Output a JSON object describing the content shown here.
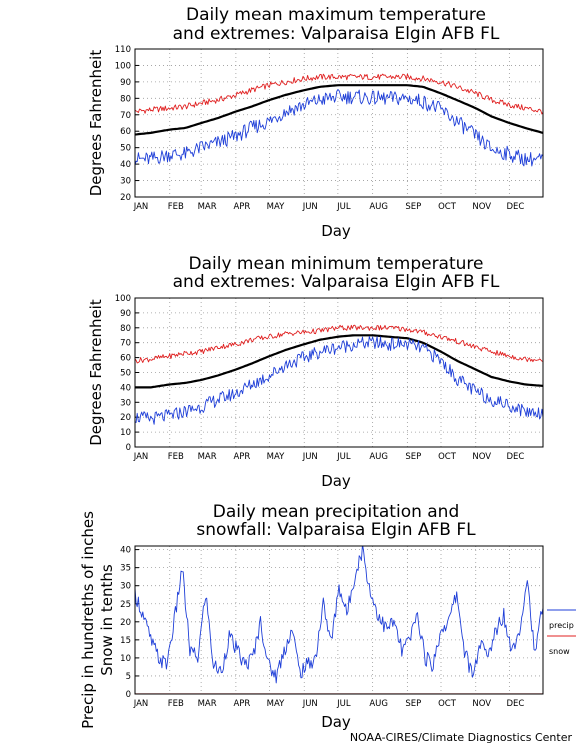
{
  "credit": "NOAA-CIRES/Climate Diagnostics Center",
  "colors": {
    "mean": "#000000",
    "upper": "#e02020",
    "lower": "#1f3fd8",
    "snow": "#e02020",
    "grid": "#9a9a9a"
  },
  "chart_data": [
    {
      "type": "line",
      "title": "Daily mean maximum temperature",
      "subtitle": "and extremes: Valparaisa Elgin AFB FL",
      "xlabel": "Day",
      "ylabel": "Degrees Fahrenheit",
      "x_ticks": [
        "JAN",
        "FEB",
        "MAR",
        "APR",
        "MAY",
        "JUN",
        "JUL",
        "AUG",
        "SEP",
        "OCT",
        "NOV",
        "DEC"
      ],
      "xlim": [
        1,
        365
      ],
      "ylim": [
        20,
        110
      ],
      "y_ticks": [
        20,
        30,
        40,
        50,
        60,
        70,
        80,
        90,
        100,
        110
      ],
      "grid": true,
      "series": [
        {
          "role": "mean",
          "x": [
            1,
            15,
            32,
            46,
            60,
            75,
            91,
            105,
            121,
            135,
            152,
            166,
            182,
            196,
            213,
            227,
            244,
            258,
            274,
            288,
            305,
            319,
            335,
            349,
            365
          ],
          "values": [
            58,
            59,
            61,
            62,
            65,
            68,
            72,
            75,
            79,
            82,
            85,
            87,
            88,
            88,
            88,
            88,
            88,
            87,
            83,
            79,
            74,
            69,
            65,
            62,
            59
          ]
        },
        {
          "role": "upper",
          "x": [
            1,
            15,
            32,
            46,
            60,
            75,
            91,
            105,
            121,
            135,
            152,
            166,
            182,
            196,
            213,
            227,
            244,
            258,
            274,
            288,
            305,
            319,
            335,
            349,
            365
          ],
          "values": [
            72,
            73,
            74,
            75,
            77,
            79,
            82,
            85,
            88,
            90,
            92,
            93,
            93,
            93,
            93,
            93,
            93,
            92,
            90,
            87,
            83,
            79,
            76,
            74,
            72
          ]
        },
        {
          "role": "lower",
          "x": [
            1,
            15,
            32,
            46,
            60,
            75,
            91,
            105,
            121,
            135,
            152,
            166,
            182,
            196,
            213,
            227,
            244,
            258,
            274,
            288,
            305,
            319,
            335,
            349,
            365
          ],
          "values": [
            43,
            43,
            46,
            46,
            50,
            53,
            57,
            62,
            66,
            72,
            76,
            79,
            81,
            81,
            80,
            80,
            80,
            78,
            73,
            66,
            57,
            49,
            46,
            43,
            43
          ]
        }
      ]
    },
    {
      "type": "line",
      "title": "Daily mean minimum temperature",
      "subtitle": "and extremes: Valparaisa Elgin AFB FL",
      "xlabel": "Day",
      "ylabel": "Degrees Fahrenheit",
      "x_ticks": [
        "JAN",
        "FEB",
        "MAR",
        "APR",
        "MAY",
        "JUN",
        "JUL",
        "AUG",
        "SEP",
        "OCT",
        "NOV",
        "DEC"
      ],
      "xlim": [
        1,
        365
      ],
      "ylim": [
        0,
        100
      ],
      "y_ticks": [
        0,
        10,
        20,
        30,
        40,
        50,
        60,
        70,
        80,
        90,
        100
      ],
      "grid": true,
      "series": [
        {
          "role": "mean",
          "x": [
            1,
            15,
            32,
            46,
            60,
            75,
            91,
            105,
            121,
            135,
            152,
            166,
            182,
            196,
            213,
            227,
            244,
            258,
            274,
            288,
            305,
            319,
            335,
            349,
            365
          ],
          "values": [
            40,
            40,
            42,
            43,
            45,
            48,
            52,
            56,
            61,
            65,
            69,
            72,
            74,
            75,
            75,
            74,
            73,
            70,
            64,
            58,
            52,
            47,
            44,
            42,
            41
          ]
        },
        {
          "role": "upper",
          "x": [
            1,
            15,
            32,
            46,
            60,
            75,
            91,
            105,
            121,
            135,
            152,
            166,
            182,
            196,
            213,
            227,
            244,
            258,
            274,
            288,
            305,
            319,
            335,
            349,
            365
          ],
          "values": [
            58,
            59,
            61,
            63,
            64,
            67,
            69,
            72,
            74,
            76,
            77,
            78,
            80,
            80,
            80,
            80,
            79,
            77,
            74,
            71,
            67,
            64,
            61,
            59,
            59
          ]
        },
        {
          "role": "lower",
          "x": [
            1,
            15,
            32,
            46,
            60,
            75,
            91,
            105,
            121,
            135,
            152,
            166,
            182,
            196,
            213,
            227,
            244,
            258,
            274,
            288,
            305,
            319,
            335,
            349,
            365
          ],
          "values": [
            20,
            19,
            21,
            24,
            27,
            32,
            36,
            42,
            48,
            55,
            60,
            64,
            67,
            69,
            70,
            69,
            69,
            66,
            58,
            46,
            37,
            32,
            28,
            24,
            23
          ]
        }
      ]
    },
    {
      "type": "line",
      "title": "Daily mean precipitation and",
      "subtitle": "snowfall: Valparaisa Elgin AFB FL",
      "xlabel": "Day",
      "ylabel": "Precip in hundreths of inches",
      "ylabel2": "Snow in tenths",
      "x_ticks": [
        "JAN",
        "FEB",
        "MAR",
        "APR",
        "MAY",
        "JUN",
        "JUL",
        "AUG",
        "SEP",
        "OCT",
        "NOV",
        "DEC"
      ],
      "xlim": [
        1,
        365
      ],
      "ylim": [
        0,
        41
      ],
      "y_ticks": [
        0,
        5,
        10,
        15,
        20,
        25,
        30,
        35,
        40
      ],
      "grid": true,
      "legend": [
        {
          "label": "precip",
          "role": "lower"
        },
        {
          "label": "snow",
          "role": "snow"
        }
      ],
      "legend_position": "right",
      "series": [
        {
          "role": "lower",
          "name": "precip",
          "x": [
            1,
            8,
            15,
            22,
            29,
            36,
            43,
            50,
            57,
            64,
            71,
            78,
            85,
            92,
            99,
            106,
            113,
            120,
            127,
            134,
            141,
            148,
            155,
            162,
            169,
            176,
            183,
            190,
            197,
            204,
            211,
            218,
            225,
            232,
            239,
            246,
            253,
            260,
            267,
            274,
            281,
            288,
            295,
            302,
            309,
            316,
            323,
            330,
            337,
            344,
            351,
            358,
            365
          ],
          "values": [
            28,
            22,
            15,
            10,
            8,
            20,
            35,
            12,
            10,
            28,
            8,
            6,
            16,
            12,
            8,
            10,
            20,
            8,
            5,
            12,
            18,
            6,
            8,
            10,
            25,
            14,
            30,
            22,
            33,
            40,
            28,
            22,
            18,
            20,
            12,
            15,
            22,
            10,
            8,
            18,
            20,
            28,
            12,
            5,
            14,
            10,
            18,
            22,
            12,
            18,
            32,
            10,
            26
          ]
        },
        {
          "role": "snow",
          "name": "snow",
          "x": [
            1,
            365
          ],
          "values": [
            0,
            0
          ]
        }
      ]
    }
  ]
}
